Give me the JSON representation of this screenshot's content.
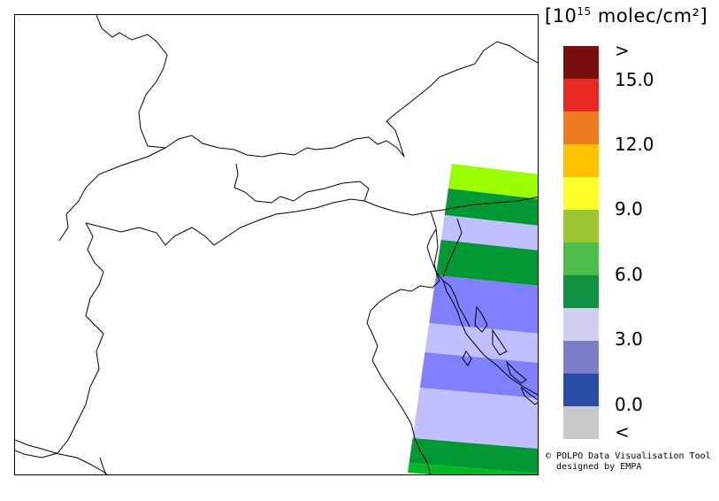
{
  "units": {
    "prefix": "[10",
    "exponent": "15",
    "suffix": " molec/cm²]"
  },
  "legend": {
    "colors": [
      "#7a0e0e",
      "#e92a24",
      "#ef7a22",
      "#fec200",
      "#fefe2a",
      "#9ec631",
      "#4cbc4a",
      "#119144",
      "#d0d0ee",
      "#7b7dc8",
      "#2b4ea4",
      "#c8c8c8"
    ],
    "labels": [
      ">",
      "15.0",
      "12.0",
      "9.0",
      "6.0",
      "3.0",
      "0.0",
      "<"
    ]
  },
  "map": {
    "swath_colors": {
      "yellowgreen": "#99ff00",
      "green": "#009933",
      "lightblue": "#c0c0ff",
      "blue": "#8080ff",
      "brightgreen": "#00bb22"
    }
  },
  "credit": {
    "line1": "© POLPO Data Visualisation Tool",
    "line2": "  designed by EMPA"
  }
}
